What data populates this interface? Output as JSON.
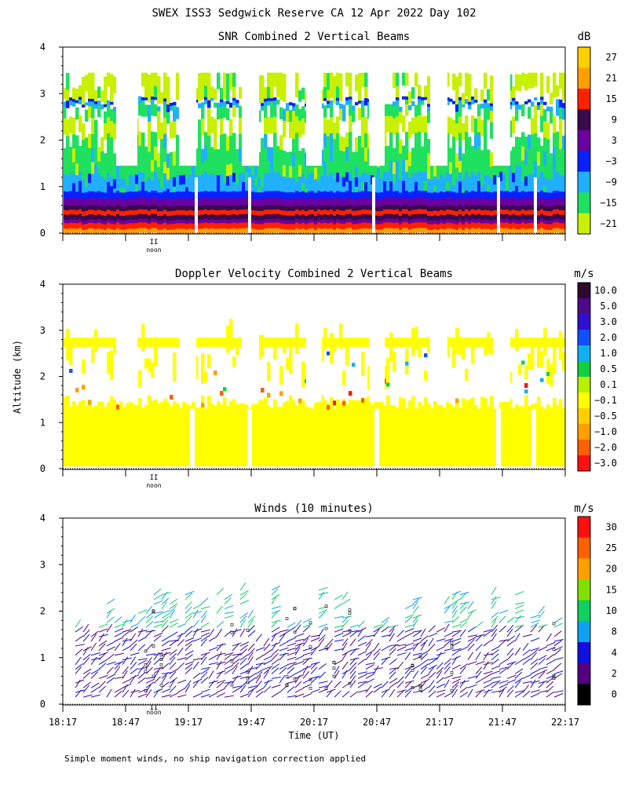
{
  "page": {
    "title": "SWEX ISS3 Sedgwick Reserve CA  12 Apr 2022 Day 102",
    "y_axis_label": "Altitude (km)",
    "x_axis_label": "Time (UT)",
    "footnote": "Simple moment winds, no ship navigation correction applied",
    "noon_label": "noon"
  },
  "chart_data": [
    {
      "type": "heatmap",
      "title": "SNR Combined 2 Vertical Beams",
      "unit": "dB",
      "ylabel": "Altitude (km)",
      "ylim": [
        0,
        4
      ],
      "yticks": [
        "0",
        "1",
        "2",
        "3",
        "4"
      ],
      "colorbar": {
        "labels": [
          "27",
          "21",
          "15",
          "9",
          "3",
          "−3",
          "−9",
          "−15",
          "−21"
        ],
        "colors": [
          "#ffd000",
          "#ffa000",
          "#ff2000",
          "#3a0a4a",
          "#6a00a0",
          "#0a20ff",
          "#20b0ff",
          "#20e060",
          "#c8f000"
        ]
      }
    },
    {
      "type": "heatmap",
      "title": "Doppler Velocity Combined 2 Vertical Beams",
      "unit": "m/s",
      "ylabel": "Altitude (km)",
      "ylim": [
        0,
        4
      ],
      "yticks": [
        "0",
        "1",
        "2",
        "3",
        "4"
      ],
      "colorbar": {
        "labels": [
          "10.0",
          "5.0",
          "3.0",
          "2.0",
          "1.0",
          "0.5",
          "0.1",
          "−0.1",
          "−0.5",
          "−1.0",
          "−2.0",
          "−3.0"
        ],
        "colors": [
          "#300830",
          "#4a0a8a",
          "#3010d0",
          "#1050ff",
          "#10b0f0",
          "#10d040",
          "#b8f000",
          "#ffff00",
          "#ffd000",
          "#ffa000",
          "#ff6000",
          "#ff1010"
        ]
      }
    },
    {
      "type": "wind-barbs",
      "title": "Winds (10 minutes)",
      "unit": "m/s",
      "ylabel": "Altitude (km)",
      "xlabel": "Time (UT)",
      "ylim": [
        0,
        4
      ],
      "yticks": [
        "0",
        "1",
        "2",
        "3",
        "4"
      ],
      "xticks": [
        "18:17",
        "18:47",
        "19:17",
        "19:47",
        "20:17",
        "20:47",
        "21:17",
        "21:47",
        "22:17"
      ],
      "colorbar": {
        "labels": [
          "30",
          "25",
          "20",
          "15",
          "10",
          "8",
          "4",
          "2",
          "0"
        ],
        "colors": [
          "#ff1010",
          "#ff6000",
          "#ffa000",
          "#80e000",
          "#10d060",
          "#10a0f0",
          "#1010e0",
          "#500080",
          "#000000"
        ]
      }
    }
  ]
}
